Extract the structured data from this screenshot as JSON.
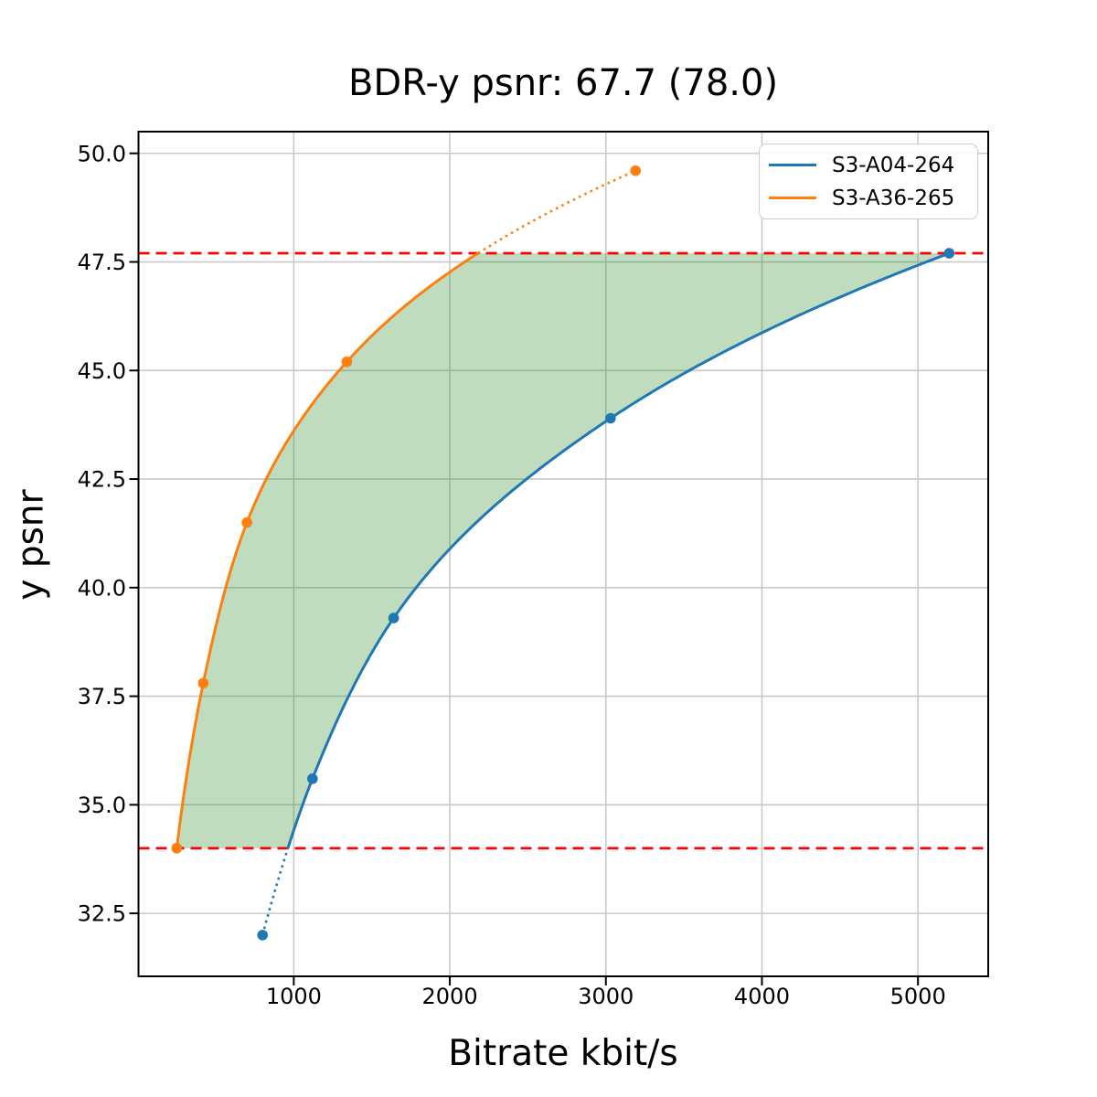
{
  "figure": {
    "background": "#ffffff"
  },
  "chart_data": {
    "type": "line",
    "title": "BDR-y psnr: 67.7 (78.0)",
    "xlabel": "Bitrate kbit/s",
    "ylabel": "y psnr",
    "xlim": [
      5,
      5450
    ],
    "ylim": [
      31.05,
      50.5
    ],
    "xticks": [
      1000,
      2000,
      3000,
      4000,
      5000
    ],
    "yticks": [
      32.5,
      35.0,
      37.5,
      40.0,
      42.5,
      45.0,
      47.5,
      50.0
    ],
    "grid": true,
    "grid_color": "#c9c9c9",
    "legend_position": "upper right",
    "series": [
      {
        "name": "S3-A04-264",
        "color": "#1f77b4",
        "x": [
          800,
          1120,
          1640,
          3030,
          5200
        ],
        "y": [
          32.0,
          35.6,
          39.3,
          43.9,
          47.7
        ],
        "solid_region": "above_threshold",
        "threshold": 34.0
      },
      {
        "name": "S3-A36-265",
        "color": "#ff7f0e",
        "x": [
          250,
          420,
          700,
          1340,
          3190
        ],
        "y": [
          34.0,
          37.8,
          41.5,
          45.2,
          49.6
        ],
        "solid_region": "below_threshold",
        "threshold": 47.7
      }
    ],
    "hlines": [
      {
        "y": 47.7,
        "color": "#ff0000",
        "style": "dashed"
      },
      {
        "y": 34.0,
        "color": "#ff0000",
        "style": "dashed"
      }
    ],
    "shaded_region": {
      "between": [
        "S3-A36-265",
        "S3-A04-264"
      ],
      "y_range": [
        34.0,
        47.7
      ],
      "color": "rgba(44,139,44,0.3)"
    }
  }
}
